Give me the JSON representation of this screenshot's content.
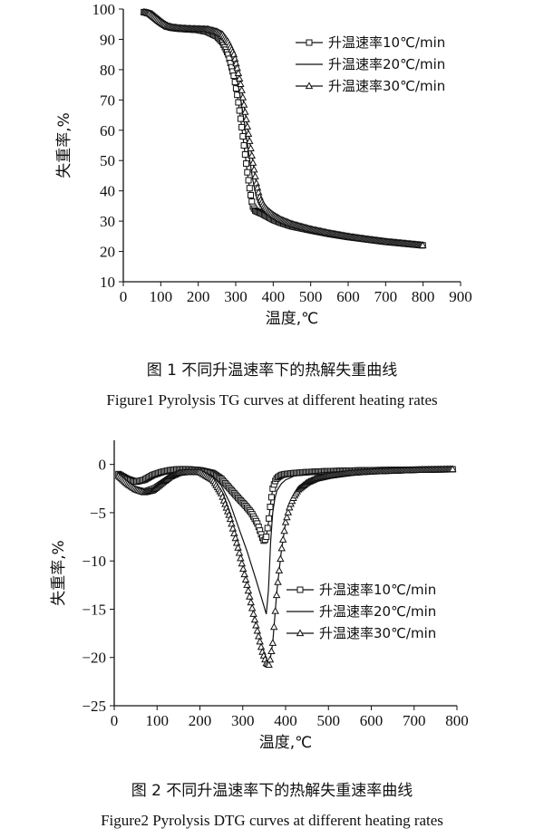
{
  "chart_data": [
    {
      "type": "line",
      "xlabel": "温度,℃",
      "ylabel": "失重率,%",
      "xlim": [
        0,
        900
      ],
      "ylim": [
        10,
        100
      ],
      "xticks": [
        0,
        100,
        200,
        300,
        400,
        500,
        600,
        700,
        800,
        900
      ],
      "yticks": [
        10,
        20,
        30,
        40,
        50,
        60,
        70,
        80,
        90,
        100
      ],
      "legend_position": "top-right",
      "series": [
        {
          "name": "升温速率10℃/min",
          "marker": "square",
          "x": [
            55,
            70,
            85,
            100,
            115,
            130,
            150,
            175,
            200,
            225,
            250,
            265,
            280,
            295,
            305,
            315,
            322,
            330,
            338,
            345,
            352,
            360,
            370,
            385,
            400,
            420,
            450,
            500,
            550,
            600,
            650,
            700,
            750,
            800
          ],
          "y": [
            99,
            98.5,
            97,
            95.5,
            94.3,
            93.8,
            93.5,
            93.3,
            93.1,
            92.5,
            91,
            89,
            85,
            78,
            71,
            62,
            55,
            47,
            40,
            35,
            33.5,
            33,
            32.5,
            31.5,
            30.5,
            29.5,
            28.3,
            27,
            25.8,
            24.8,
            24,
            23.2,
            22.6,
            22
          ]
        },
        {
          "name": "升温速率20℃/min",
          "marker": "none",
          "x": [
            55,
            70,
            85,
            100,
            115,
            130,
            150,
            175,
            200,
            225,
            250,
            265,
            280,
            295,
            305,
            315,
            325,
            335,
            345,
            355,
            362,
            370,
            380,
            390,
            400,
            420,
            450,
            500,
            550,
            600,
            650,
            700,
            750,
            800
          ],
          "y": [
            99,
            98.5,
            97,
            95.5,
            94.3,
            93.8,
            93.5,
            93.3,
            93.2,
            93,
            92,
            90.5,
            87.5,
            82,
            76,
            69,
            61,
            52,
            44,
            38,
            35.5,
            34.3,
            33.3,
            32.4,
            31.5,
            30.2,
            28.8,
            27.2,
            26,
            24.9,
            24,
            23.2,
            22.6,
            22
          ]
        },
        {
          "name": "升温速率30℃/min",
          "marker": "triangle",
          "x": [
            55,
            70,
            85,
            100,
            115,
            130,
            150,
            175,
            200,
            225,
            250,
            265,
            280,
            295,
            305,
            315,
            325,
            335,
            345,
            355,
            365,
            375,
            385,
            400,
            420,
            450,
            500,
            550,
            600,
            650,
            700,
            750,
            800
          ],
          "y": [
            99,
            98.5,
            97,
            95.6,
            94.5,
            94,
            93.7,
            93.5,
            93.4,
            93.3,
            92.5,
            91.5,
            89,
            85,
            80,
            74,
            66,
            58,
            50,
            42.5,
            37.5,
            35,
            33.5,
            32,
            30.5,
            29,
            27.3,
            26,
            24.9,
            24,
            23.2,
            22.6,
            22
          ]
        }
      ]
    },
    {
      "type": "line",
      "xlabel": "温度,℃",
      "ylabel": "失重率,%",
      "xlim": [
        0,
        800
      ],
      "ylim": [
        -25,
        2.5
      ],
      "xticks": [
        0,
        100,
        200,
        300,
        400,
        500,
        600,
        700,
        800
      ],
      "yticks": [
        0,
        -5,
        -10,
        -15,
        -20,
        -25
      ],
      "legend_position": "center-right",
      "series": [
        {
          "name": "升温速率10℃/min",
          "marker": "square",
          "x": [
            10,
            30,
            50,
            70,
            90,
            110,
            130,
            150,
            170,
            200,
            230,
            250,
            270,
            290,
            305,
            320,
            335,
            345,
            350,
            355,
            360,
            365,
            370,
            375,
            380,
            390,
            400,
            420,
            450,
            500,
            600,
            700,
            790
          ],
          "y": [
            -1,
            -1.5,
            -1.8,
            -1.6,
            -1.1,
            -0.8,
            -0.6,
            -0.5,
            -0.5,
            -0.6,
            -0.9,
            -1.5,
            -2.5,
            -3.5,
            -4.2,
            -5,
            -6.2,
            -7.5,
            -8,
            -7.5,
            -6,
            -4,
            -2.5,
            -1.8,
            -1.4,
            -1.1,
            -1.0,
            -0.9,
            -0.8,
            -0.7,
            -0.6,
            -0.55,
            -0.5
          ]
        },
        {
          "name": "升温速率20℃/min",
          "marker": "none",
          "x": [
            10,
            30,
            50,
            70,
            90,
            110,
            130,
            150,
            170,
            200,
            230,
            250,
            270,
            290,
            310,
            330,
            345,
            355,
            360,
            365,
            370,
            375,
            380,
            390,
            400,
            420,
            450,
            500,
            600,
            700,
            790
          ],
          "y": [
            -1.2,
            -1.8,
            -2.3,
            -2.5,
            -2.2,
            -1.6,
            -1.0,
            -0.7,
            -0.6,
            -0.6,
            -1.2,
            -2.2,
            -4,
            -6.5,
            -9,
            -11.8,
            -14,
            -15.5,
            -13,
            -8,
            -5,
            -3.5,
            -2.7,
            -2.0,
            -1.6,
            -1.2,
            -1.0,
            -0.8,
            -0.65,
            -0.55,
            -0.5
          ]
        },
        {
          "name": "升温速率30℃/min",
          "marker": "triangle",
          "x": [
            10,
            30,
            50,
            70,
            90,
            110,
            130,
            150,
            170,
            200,
            230,
            250,
            270,
            290,
            310,
            330,
            345,
            355,
            362,
            370,
            380,
            390,
            400,
            410,
            420,
            430,
            450,
            470,
            500,
            550,
            600,
            700,
            790
          ],
          "y": [
            -1.2,
            -2,
            -2.6,
            -2.9,
            -2.7,
            -2.0,
            -1.3,
            -0.9,
            -0.8,
            -0.8,
            -1.6,
            -3,
            -5.5,
            -8.8,
            -12.5,
            -16.5,
            -19.3,
            -20.6,
            -20.8,
            -18.5,
            -13,
            -9,
            -6,
            -4.3,
            -3.3,
            -2.6,
            -1.9,
            -1.5,
            -1.2,
            -0.9,
            -0.75,
            -0.6,
            -0.5
          ]
        }
      ]
    }
  ],
  "captions": {
    "fig1_cn": "图 1   不同升温速率下的热解失重曲线",
    "fig1_en": "Figure1    Pyrolysis TG curves at different heating rates",
    "fig2_cn": "图 2   不同升温速率下的热解失重速率曲线",
    "fig2_en": "Figure2    Pyrolysis DTG curves at different heating rates"
  },
  "colors": {
    "line": "#111111",
    "background": "#ffffff"
  }
}
